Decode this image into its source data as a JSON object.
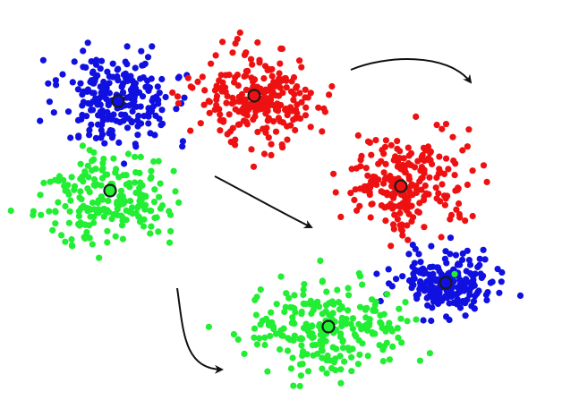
{
  "colors": {
    "background": "#ffffff",
    "blue": "#1010e0",
    "red": "#ee1111",
    "green": "#22ee33",
    "centroid_stroke": "#1a1a1a",
    "arrow": "#111111"
  },
  "clusters": [
    {
      "name": "blue-cluster-original",
      "color": "blue",
      "points": 230,
      "seed": 11
    },
    {
      "name": "red-cluster-original",
      "color": "red",
      "points": 240,
      "seed": 23
    },
    {
      "name": "green-cluster-original",
      "color": "green",
      "points": 210,
      "seed": 37
    },
    {
      "name": "red-cluster-moved",
      "color": "red",
      "points": 240,
      "seed": 41
    },
    {
      "name": "blue-cluster-moved",
      "color": "blue",
      "points": 220,
      "seed": 53
    },
    {
      "name": "green-cluster-moved",
      "color": "green",
      "points": 240,
      "seed": 67
    }
  ],
  "arrows": [
    {
      "name": "arrow-red-to-right"
    },
    {
      "name": "arrow-blue-to-bottom-right"
    },
    {
      "name": "arrow-green-to-bottom"
    }
  ]
}
